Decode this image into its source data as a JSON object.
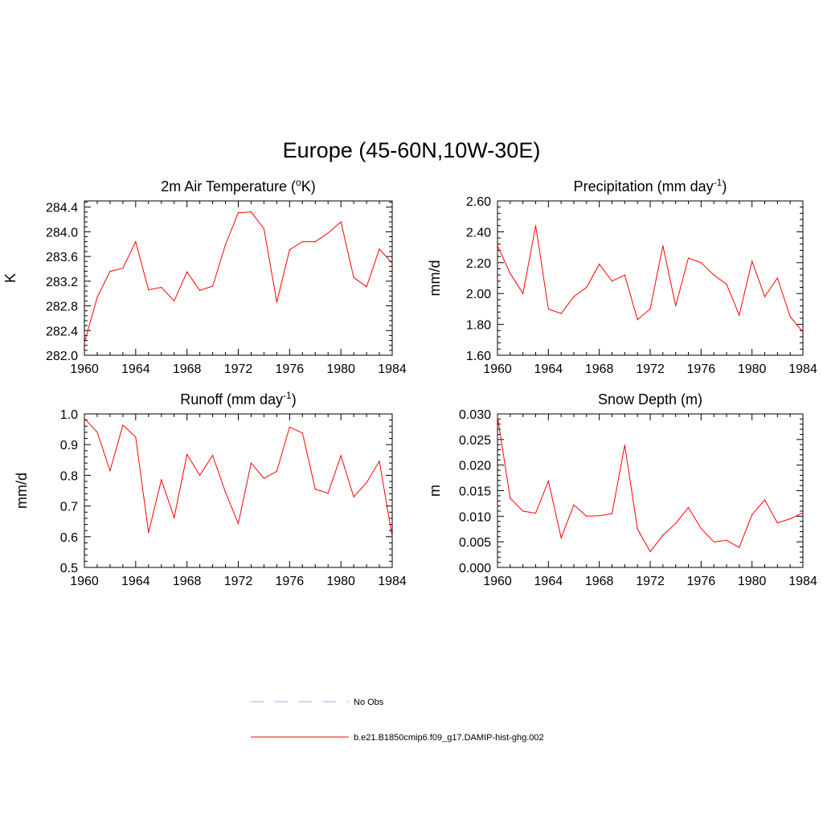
{
  "figure": {
    "title": "Europe (45-60N,10W-30E)"
  },
  "legend": {
    "entries": [
      {
        "label": "No Obs",
        "color": "#aaaaee",
        "style": "dashed"
      },
      {
        "label": "b.e21.B1850cmip6.f09_g17.DAMIP-hist-ghg.002",
        "color": "#ff0000",
        "style": "solid"
      }
    ]
  },
  "chart_data": [
    {
      "type": "line",
      "title": "2m Air Temperature (oK)",
      "title_main": "2m Air Temperature (",
      "title_sup": "o",
      "title_tail": "K)",
      "xlabel": "",
      "ylabel": "K",
      "xlim": [
        1960,
        1984
      ],
      "ylim": [
        282.0,
        284.5
      ],
      "xticks": [
        1960,
        1964,
        1968,
        1972,
        1976,
        1980,
        1984
      ],
      "yticks": [
        "282.0",
        "282.4",
        "282.8",
        "283.2",
        "283.6",
        "284.0",
        "284.4"
      ],
      "grid": false,
      "series": [
        {
          "color": "#ff0000",
          "x": [
            1960,
            1961,
            1962,
            1963,
            1964,
            1965,
            1966,
            1967,
            1968,
            1969,
            1970,
            1971,
            1972,
            1973,
            1974,
            1975,
            1976,
            1977,
            1978,
            1979,
            1980,
            1981,
            1982,
            1983,
            1984
          ],
          "y": [
            282.2,
            282.94,
            283.36,
            283.41,
            283.84,
            283.06,
            283.1,
            282.88,
            283.35,
            283.05,
            283.12,
            283.79,
            284.31,
            284.32,
            284.05,
            282.86,
            283.71,
            283.84,
            283.84,
            283.98,
            284.16,
            283.26,
            283.11,
            283.72,
            283.49
          ]
        }
      ]
    },
    {
      "type": "line",
      "title": "Precipitation (mm day-1)",
      "title_main": "Precipitation (mm day",
      "title_sup": "-1",
      "title_tail": ")",
      "xlabel": "",
      "ylabel": "mm/d",
      "xlim": [
        1960,
        1984
      ],
      "ylim": [
        1.6,
        2.6
      ],
      "xticks": [
        1960,
        1964,
        1968,
        1972,
        1976,
        1980,
        1984
      ],
      "yticks": [
        "1.60",
        "1.80",
        "2.00",
        "2.20",
        "2.40",
        "2.60"
      ],
      "grid": false,
      "series": [
        {
          "color": "#ff0000",
          "x": [
            1960,
            1961,
            1962,
            1963,
            1964,
            1965,
            1966,
            1967,
            1968,
            1969,
            1970,
            1971,
            1972,
            1973,
            1974,
            1975,
            1976,
            1977,
            1978,
            1979,
            1980,
            1981,
            1982,
            1983,
            1984
          ],
          "y": [
            2.31,
            2.13,
            2.0,
            2.44,
            1.9,
            1.87,
            1.98,
            2.04,
            2.19,
            2.08,
            2.12,
            1.83,
            1.9,
            2.31,
            1.92,
            2.23,
            2.2,
            2.12,
            2.06,
            1.86,
            2.21,
            1.98,
            2.1,
            1.85,
            1.75
          ]
        }
      ]
    },
    {
      "type": "line",
      "title": "Runoff (mm day-1)",
      "title_main": "Runoff (mm day",
      "title_sup": "-1",
      "title_tail": ")",
      "xlabel": "",
      "ylabel": "mm/d",
      "xlim": [
        1960,
        1984
      ],
      "ylim": [
        0.5,
        1.0
      ],
      "xticks": [
        1960,
        1964,
        1968,
        1972,
        1976,
        1980,
        1984
      ],
      "yticks": [
        "0.5",
        "0.6",
        "0.7",
        "0.8",
        "0.9",
        "1.0"
      ],
      "grid": false,
      "series": [
        {
          "color": "#ff0000",
          "x": [
            1960,
            1961,
            1962,
            1963,
            1964,
            1965,
            1966,
            1967,
            1968,
            1969,
            1970,
            1971,
            1972,
            1973,
            1974,
            1975,
            1976,
            1977,
            1978,
            1979,
            1980,
            1981,
            1982,
            1983,
            1984
          ],
          "y": [
            0.985,
            0.94,
            0.815,
            0.963,
            0.925,
            0.614,
            0.785,
            0.662,
            0.868,
            0.8,
            0.865,
            0.745,
            0.643,
            0.84,
            0.79,
            0.813,
            0.957,
            0.938,
            0.755,
            0.742,
            0.864,
            0.73,
            0.776,
            0.846,
            0.6
          ]
        }
      ]
    },
    {
      "type": "line",
      "title": "Snow Depth (m)",
      "title_main": "Snow Depth (m)",
      "title_sup": "",
      "title_tail": "",
      "xlabel": "",
      "ylabel": "m",
      "xlim": [
        1960,
        1984
      ],
      "ylim": [
        0.0,
        0.03
      ],
      "xticks": [
        1960,
        1964,
        1968,
        1972,
        1976,
        1980,
        1984
      ],
      "yticks": [
        "0.000",
        "0.005",
        "0.010",
        "0.015",
        "0.020",
        "0.025",
        "0.030"
      ],
      "grid": false,
      "series": [
        {
          "color": "#ff0000",
          "x": [
            1960,
            1961,
            1962,
            1963,
            1964,
            1965,
            1966,
            1967,
            1968,
            1969,
            1970,
            1971,
            1972,
            1973,
            1974,
            1975,
            1976,
            1977,
            1978,
            1979,
            1980,
            1981,
            1982,
            1983,
            1984
          ],
          "y": [
            0.0295,
            0.0135,
            0.011,
            0.0106,
            0.0169,
            0.0058,
            0.0122,
            0.01,
            0.0101,
            0.0105,
            0.0239,
            0.0075,
            0.0031,
            0.0063,
            0.0086,
            0.0117,
            0.0076,
            0.005,
            0.0053,
            0.0039,
            0.0103,
            0.0132,
            0.0087,
            0.0095,
            0.0107
          ]
        }
      ]
    }
  ]
}
